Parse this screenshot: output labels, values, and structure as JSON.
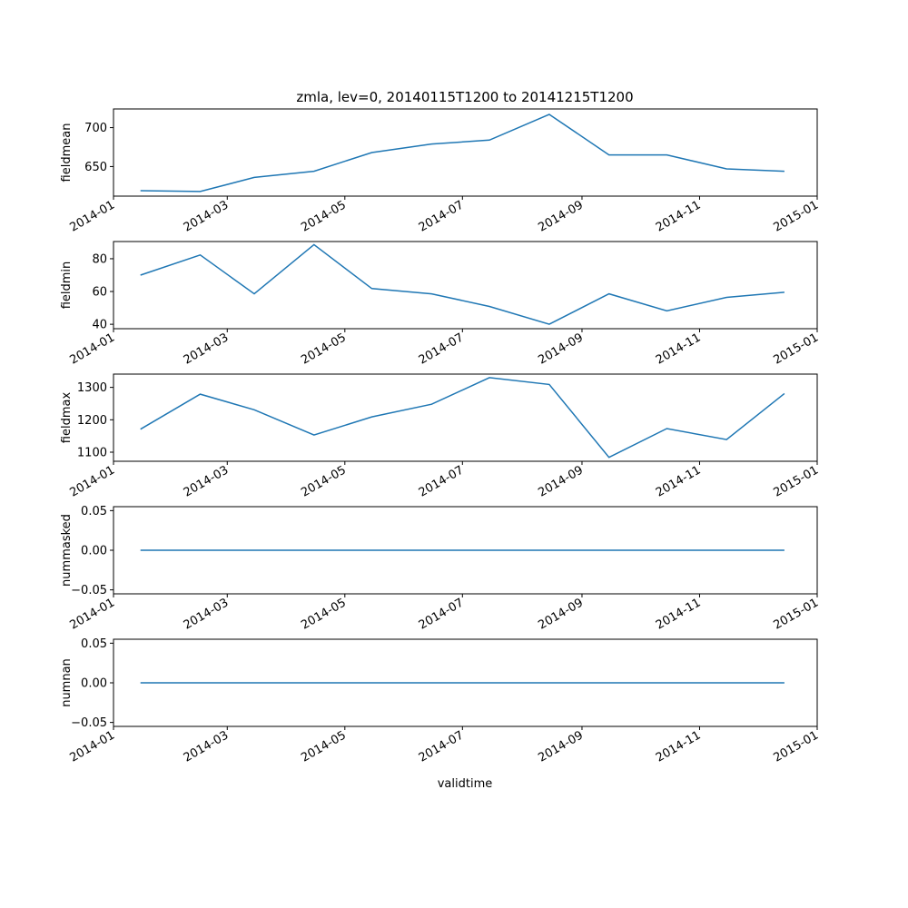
{
  "chart_data": {
    "type": "line",
    "title": "zmla, lev=0, 20140115T1200 to 20141215T1200",
    "xlabel": "validtime",
    "x": [
      "2014-01-15",
      "2014-02-15",
      "2014-03-15",
      "2014-04-15",
      "2014-05-15",
      "2014-06-15",
      "2014-07-15",
      "2014-08-15",
      "2014-09-15",
      "2014-10-15",
      "2014-11-15",
      "2014-12-15"
    ],
    "x_ticks": [
      "2014-01",
      "2014-03",
      "2014-05",
      "2014-07",
      "2014-09",
      "2014-11",
      "2015-01"
    ],
    "xlim": [
      "2014-01-01",
      "2015-01-01"
    ],
    "color": "#1f77b4",
    "panels": [
      {
        "ylabel": "fieldmean",
        "values": [
          619,
          618,
          636,
          644,
          668,
          679,
          684,
          717,
          665,
          665,
          647,
          644
        ],
        "ylim": [
          612,
          724
        ],
        "yticks": [
          650,
          700
        ],
        "ytick_labels": [
          "650",
          "700"
        ]
      },
      {
        "ylabel": "fieldmin",
        "values": [
          70,
          82.3,
          58.6,
          88.6,
          61.8,
          58.6,
          50.9,
          40,
          58.6,
          48.2,
          56.4,
          59.5
        ],
        "ylim": [
          37.3,
          90.5
        ],
        "yticks": [
          40,
          60,
          80
        ],
        "ytick_labels": [
          "40",
          "60",
          "80"
        ]
      },
      {
        "ylabel": "fieldmax",
        "values": [
          1171,
          1279,
          1231,
          1153,
          1209,
          1248,
          1330,
          1309,
          1084,
          1173,
          1139,
          1281
        ],
        "ylim": [
          1072,
          1341
        ],
        "yticks": [
          1100,
          1200,
          1300
        ],
        "ytick_labels": [
          "1100",
          "1200",
          "1300"
        ]
      },
      {
        "ylabel": "nummasked",
        "values": [
          0,
          0,
          0,
          0,
          0,
          0,
          0,
          0,
          0,
          0,
          0,
          0
        ],
        "ylim": [
          -0.055,
          0.055
        ],
        "yticks": [
          -0.05,
          0,
          0.05
        ],
        "ytick_labels": [
          "−0.05",
          "0.00",
          "0.05"
        ]
      },
      {
        "ylabel": "numnan",
        "values": [
          0,
          0,
          0,
          0,
          0,
          0,
          0,
          0,
          0,
          0,
          0,
          0
        ],
        "ylim": [
          -0.055,
          0.055
        ],
        "yticks": [
          -0.05,
          0,
          0.05
        ],
        "ytick_labels": [
          "−0.05",
          "0.00",
          "0.05"
        ]
      }
    ]
  }
}
